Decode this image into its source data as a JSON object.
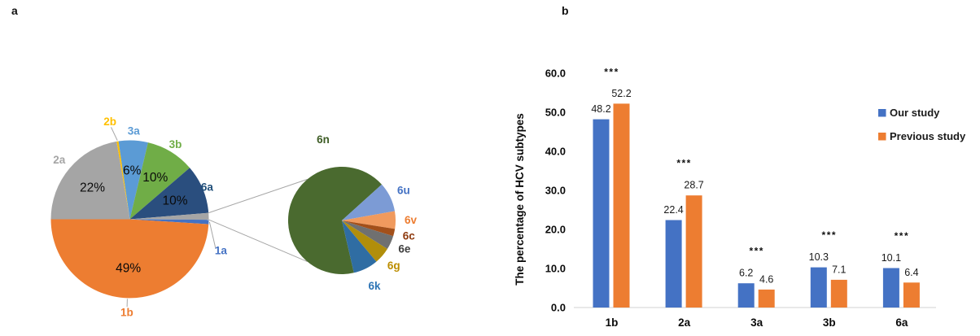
{
  "panels": {
    "a": {
      "letter": "a"
    },
    "b": {
      "letter": "b"
    }
  },
  "chart_data": [
    {
      "id": "pie-main",
      "type": "pie",
      "title": "",
      "rotation_deg": -9.7,
      "slices": [
        {
          "label": "2b",
          "value": 0.4,
          "pct_label": "",
          "color": "#FFC000",
          "label_color": "#FFC000"
        },
        {
          "label": "3a",
          "value": 6,
          "pct_label": "6%",
          "color": "#5B9BD5",
          "label_color": "#5B9BD5"
        },
        {
          "label": "3b",
          "value": 10,
          "pct_label": "10%",
          "color": "#70AD47",
          "label_color": "#70AD47"
        },
        {
          "label": "6a",
          "value": 10,
          "pct_label": "10%",
          "color": "#2A4E7E",
          "label_color": "#1F4E79"
        },
        {
          "label": "",
          "value": 1.4,
          "pct_label": "",
          "color": "#A5A5A5",
          "label_color": "#A5A5A5"
        },
        {
          "label": "1a",
          "value": 0.9,
          "pct_label": "",
          "color": "#4472C4",
          "label_color": "#4472C4"
        },
        {
          "label": "1b",
          "value": 49,
          "pct_label": "49%",
          "color": "#ED7D31",
          "label_color": "#ED7D31"
        },
        {
          "label": "2a",
          "value": 22.3,
          "pct_label": "22%",
          "color": "#A5A5A5",
          "label_color": "#A5A5A5"
        }
      ]
    },
    {
      "id": "pie-genotype6",
      "type": "pie",
      "title": "",
      "rotation_deg": 167,
      "slices": [
        {
          "label": "6n",
          "value": 67,
          "pct_label": "",
          "color": "#4A6A2F",
          "label_color": "#3E5D26"
        },
        {
          "label": "6u",
          "value": 8.9,
          "pct_label": "",
          "color": "#7C9BD5",
          "label_color": "#4472C4"
        },
        {
          "label": "6v",
          "value": 5.3,
          "pct_label": "",
          "color": "#F09A5E",
          "label_color": "#ED7D31"
        },
        {
          "label": "6c",
          "value": 2.2,
          "pct_label": "",
          "color": "#A3501A",
          "label_color": "#8E3A0E"
        },
        {
          "label": "6e",
          "value": 4.2,
          "pct_label": "",
          "color": "#707070",
          "label_color": "#3F3F3F"
        },
        {
          "label": "6g",
          "value": 5.0,
          "pct_label": "",
          "color": "#B18E0B",
          "label_color": "#BC8D00"
        },
        {
          "label": "6k",
          "value": 7.5,
          "pct_label": "",
          "color": "#2F6DA3",
          "label_color": "#2E75B6"
        }
      ]
    },
    {
      "id": "bar-hcv",
      "type": "bar",
      "categories": [
        "1b",
        "2a",
        "3a",
        "3b",
        "6a"
      ],
      "series": [
        {
          "name": "Our study",
          "color": "#4472C4",
          "values": [
            48.2,
            22.4,
            6.2,
            10.3,
            10.1
          ]
        },
        {
          "name": "Previous study",
          "color": "#ED7D31",
          "values": [
            52.2,
            28.7,
            4.6,
            7.1,
            6.4
          ]
        }
      ],
      "significance": [
        "***",
        "***",
        "***",
        "***",
        "***"
      ],
      "ylabel": "The percentage of HCV subtypes",
      "y_ticks": [
        "60.0",
        "50.0",
        "40.0",
        "30.0",
        "20.0",
        "10.0",
        "0.0"
      ],
      "ylim": [
        0,
        60
      ],
      "grid": false,
      "legend_position": "right"
    }
  ]
}
